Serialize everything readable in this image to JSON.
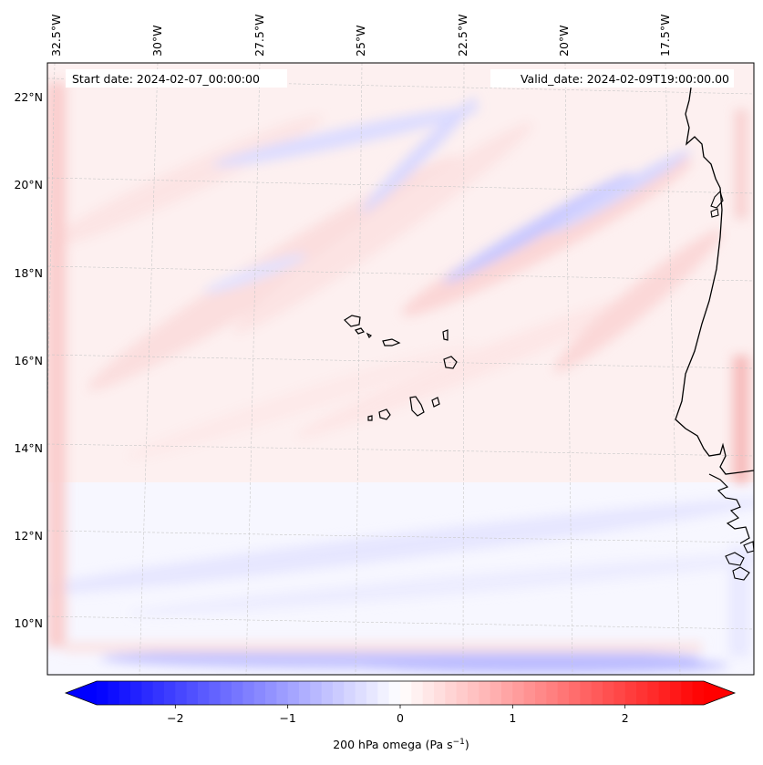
{
  "header": {
    "start_label": "Start date: 2024-02-07_00:00:00",
    "valid_label": "Valid_date: 2024-02-09T19:00:00.00"
  },
  "map": {
    "lon_labels": [
      "32.5°W",
      "30°W",
      "27.5°W",
      "25°W",
      "22.5°W",
      "20°W",
      "17.5°W"
    ],
    "lat_labels": [
      "22°N",
      "20°N",
      "18°N",
      "16°N",
      "14°N",
      "12°N",
      "10°N"
    ],
    "background_color": "#f7f7ff",
    "coast_color": "#000000"
  },
  "colorbar": {
    "label_text": "200 hPa omega (Pa s",
    "label_unit_sup": "−1",
    "label_tail": ")",
    "ticks": [
      "−2",
      "−1",
      "0",
      "1",
      "2"
    ],
    "range": [
      -2.7,
      2.7
    ],
    "min_color": "#0000ff",
    "mid_color": "#ffffff",
    "max_color": "#ff0000"
  }
}
